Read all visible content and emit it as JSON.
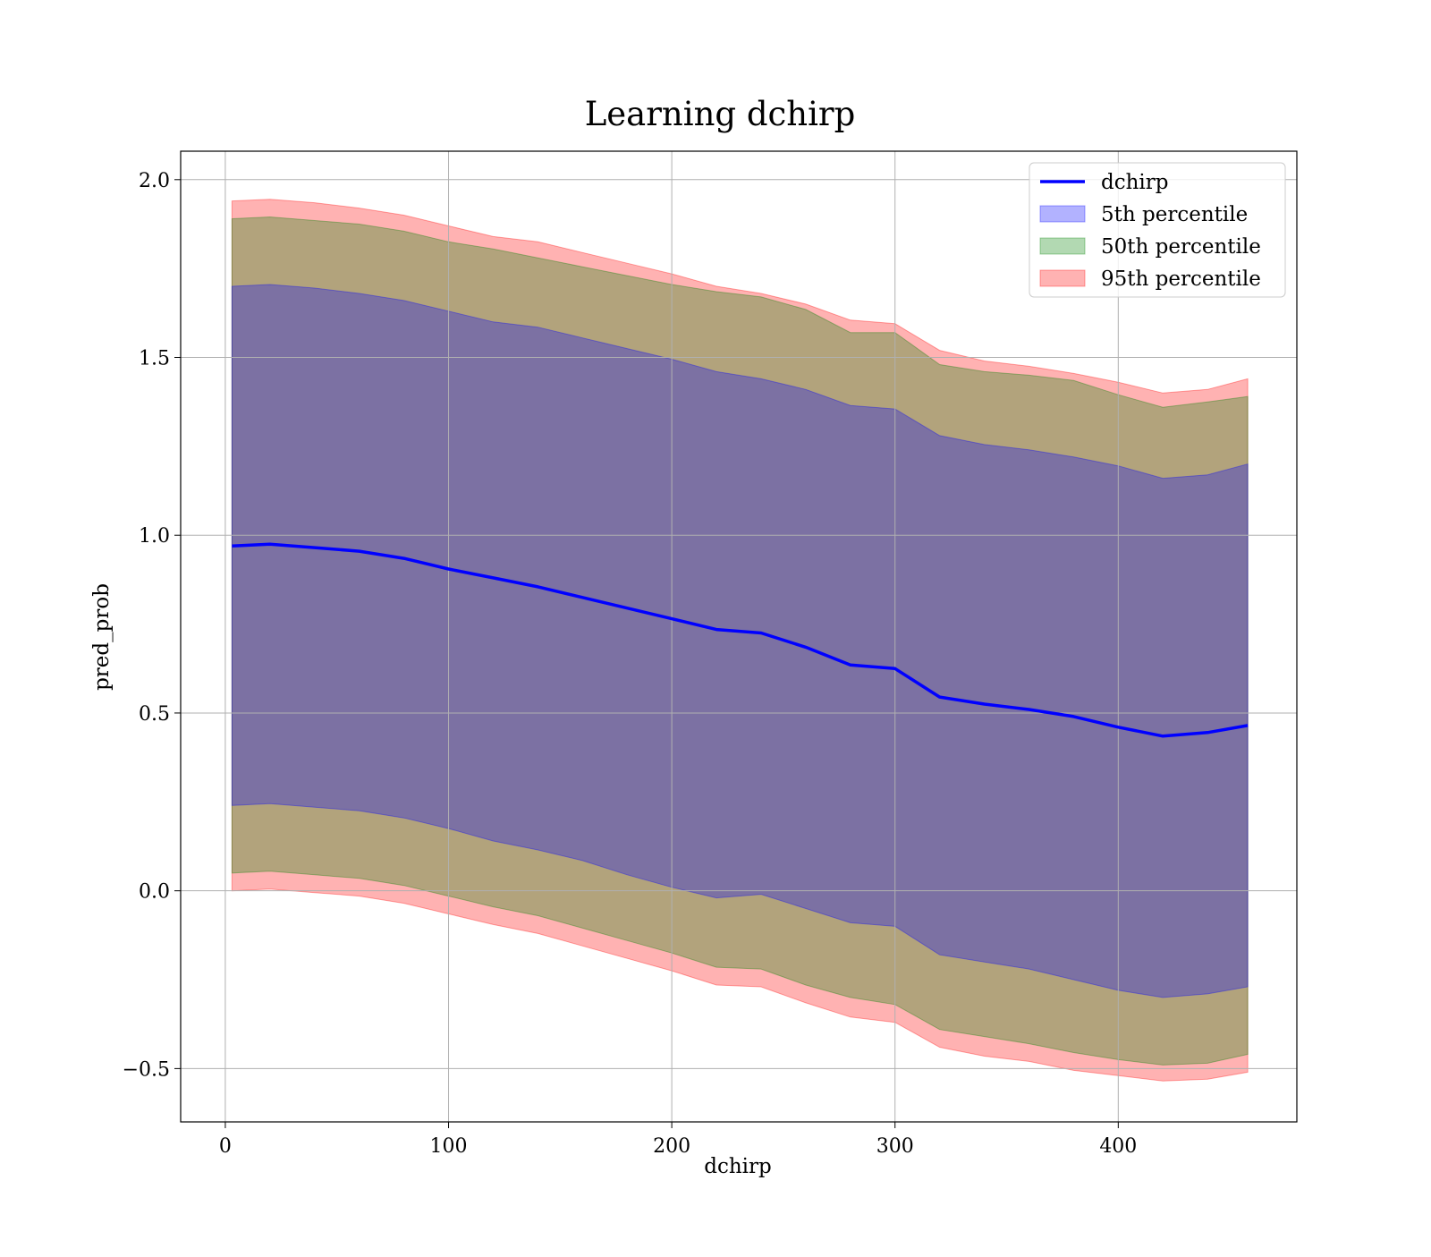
{
  "chart_data": {
    "type": "area",
    "title": "Learning dchirp",
    "xlabel": "dchirp",
    "ylabel": "pred_prob",
    "xlim": [
      -20,
      480
    ],
    "ylim": [
      -0.65,
      2.08
    ],
    "grid": true,
    "legend_position": "top-right",
    "x_ticks": [
      {
        "value": 0,
        "label": "0"
      },
      {
        "value": 100,
        "label": "100"
      },
      {
        "value": 200,
        "label": "200"
      },
      {
        "value": 300,
        "label": "300"
      },
      {
        "value": 400,
        "label": "400"
      }
    ],
    "y_ticks": [
      {
        "value": -0.5,
        "label": "−0.5"
      },
      {
        "value": 0.0,
        "label": "0.0"
      },
      {
        "value": 0.5,
        "label": "0.5"
      },
      {
        "value": 1.0,
        "label": "1.0"
      },
      {
        "value": 1.5,
        "label": "1.5"
      },
      {
        "value": 2.0,
        "label": "2.0"
      }
    ],
    "x": [
      3,
      20,
      40,
      60,
      80,
      100,
      120,
      140,
      160,
      180,
      200,
      220,
      240,
      260,
      280,
      300,
      320,
      340,
      360,
      380,
      400,
      420,
      440,
      458
    ],
    "series": [
      {
        "name": "dchirp",
        "kind": "line",
        "color": "#0000ff",
        "values": [
          0.97,
          0.975,
          0.965,
          0.955,
          0.935,
          0.905,
          0.88,
          0.855,
          0.825,
          0.795,
          0.765,
          0.735,
          0.725,
          0.685,
          0.635,
          0.625,
          0.545,
          0.525,
          0.51,
          0.49,
          0.46,
          0.435,
          0.445,
          0.465
        ]
      },
      {
        "name": "5th percentile",
        "kind": "band",
        "color": "#0000ff",
        "lower": [
          0.24,
          0.245,
          0.235,
          0.225,
          0.205,
          0.175,
          0.14,
          0.115,
          0.085,
          0.045,
          0.01,
          -0.02,
          -0.01,
          -0.05,
          -0.09,
          -0.1,
          -0.18,
          -0.2,
          -0.22,
          -0.25,
          -0.28,
          -0.3,
          -0.29,
          -0.27
        ],
        "upper": [
          1.7,
          1.705,
          1.695,
          1.68,
          1.66,
          1.63,
          1.6,
          1.585,
          1.555,
          1.525,
          1.495,
          1.46,
          1.44,
          1.41,
          1.365,
          1.355,
          1.28,
          1.255,
          1.24,
          1.22,
          1.195,
          1.16,
          1.17,
          1.2
        ]
      },
      {
        "name": "50th percentile",
        "kind": "band",
        "color": "#008000",
        "lower": [
          0.05,
          0.055,
          0.045,
          0.035,
          0.015,
          -0.015,
          -0.045,
          -0.07,
          -0.105,
          -0.14,
          -0.175,
          -0.215,
          -0.22,
          -0.265,
          -0.3,
          -0.32,
          -0.39,
          -0.41,
          -0.43,
          -0.455,
          -0.475,
          -0.49,
          -0.485,
          -0.46
        ]
      },
      {
        "name": "95th percentile",
        "kind": "band",
        "color": "#ff0000",
        "lower": [
          0.0,
          0.005,
          -0.005,
          -0.015,
          -0.035,
          -0.065,
          -0.095,
          -0.12,
          -0.155,
          -0.19,
          -0.225,
          -0.265,
          -0.27,
          -0.315,
          -0.355,
          -0.37,
          -0.44,
          -0.465,
          -0.48,
          -0.505,
          -0.52,
          -0.535,
          -0.53,
          -0.51
        ],
        "upper": [
          1.94,
          1.945,
          1.935,
          1.92,
          1.9,
          1.87,
          1.84,
          1.825,
          1.795,
          1.765,
          1.735,
          1.7,
          1.68,
          1.65,
          1.605,
          1.595,
          1.52,
          1.49,
          1.475,
          1.455,
          1.43,
          1.4,
          1.41,
          1.44
        ]
      }
    ],
    "legend": [
      {
        "label": "dchirp",
        "kind": "line",
        "color": "#0000ff"
      },
      {
        "label": "5th percentile",
        "kind": "patch",
        "color": "#0000ff"
      },
      {
        "label": "50th percentile",
        "kind": "patch",
        "color": "#008000"
      },
      {
        "label": "95th percentile",
        "kind": "patch",
        "color": "#ff0000"
      }
    ]
  }
}
